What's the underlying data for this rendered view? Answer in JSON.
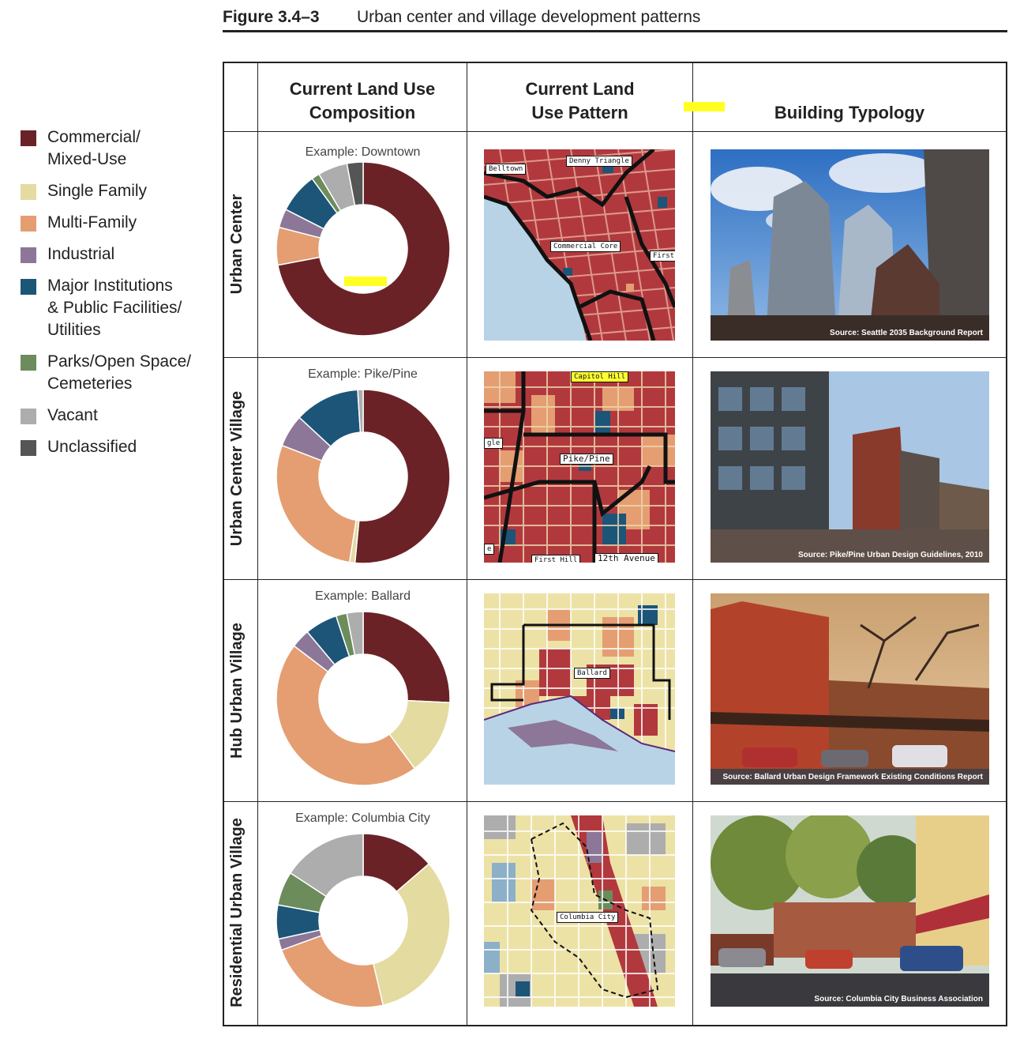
{
  "figure": {
    "number": "Figure 3.4–3",
    "title": "Urban center and village development patterns"
  },
  "legend": [
    {
      "label_lines": [
        "Commercial/",
        "Mixed-Use"
      ],
      "color": "#6b2226"
    },
    {
      "label_lines": [
        "Single Family"
      ],
      "color": "#e3dba0"
    },
    {
      "label_lines": [
        "Multi-Family"
      ],
      "color": "#e49e72"
    },
    {
      "label_lines": [
        "Industrial"
      ],
      "color": "#8c7799"
    },
    {
      "label_lines": [
        "Major Institutions",
        "& Public Facilities/",
        "Utilities"
      ],
      "color": "#1c5578"
    },
    {
      "label_lines": [
        "Parks/Open Space/",
        "Cemeteries"
      ],
      "color": "#6c8c5c"
    },
    {
      "label_lines": [
        "Vacant"
      ],
      "color": "#adadad"
    },
    {
      "label_lines": [
        "Unclassified"
      ],
      "color": "#555555"
    }
  ],
  "columns": {
    "composition_lines": [
      "Current Land Use",
      "Composition"
    ],
    "pattern_lines": [
      "Current Land",
      "Use Pattern"
    ],
    "typology": "Building Typology"
  },
  "rows": [
    {
      "label": "Urban Center",
      "example": "Example: Downtown",
      "map_labels": [
        "Belltown",
        "Denny Triangle",
        "Commercial Core",
        "First H"
      ],
      "photo_source": "Source: Seattle 2035 Background Report"
    },
    {
      "label": "Urban Center Village",
      "example": "Example: Pike/Pine",
      "map_labels": [
        "Capitol Hill",
        "gle",
        "Pike/Pine",
        "e",
        "First Hill",
        "12th Avenue"
      ],
      "photo_source": "Source: Pike/Pine Urban Design Guidelines, 2010"
    },
    {
      "label": "Hub Urban Village",
      "example": "Example: Ballard",
      "map_labels": [
        "Ballard"
      ],
      "photo_source": "Source: Ballard Urban Design Framework Existing Conditions Report"
    },
    {
      "label": "Residential Urban Village",
      "example": "Example: Columbia City",
      "map_labels": [
        "Columbia City"
      ],
      "photo_source": "Source: Columbia City Business Association"
    }
  ],
  "chart_data": [
    {
      "type": "pie",
      "title": "Example: Downtown",
      "categories": [
        "Commercial/Mixed-Use",
        "Single Family",
        "Multi-Family",
        "Industrial",
        "Major Institutions & Public Facilities/Utilities",
        "Parks/Open Space/Cemeteries",
        "Vacant",
        "Unclassified"
      ],
      "values": [
        72,
        0,
        7,
        3.5,
        7.5,
        1.5,
        5.5,
        3
      ]
    },
    {
      "type": "pie",
      "title": "Example: Pike/Pine",
      "categories": [
        "Commercial/Mixed-Use",
        "Single Family",
        "Multi-Family",
        "Industrial",
        "Major Institutions & Public Facilities/Utilities",
        "Parks/Open Space/Cemeteries",
        "Vacant",
        "Unclassified"
      ],
      "values": [
        51,
        1,
        28,
        6,
        12,
        0,
        1,
        0
      ]
    },
    {
      "type": "pie",
      "title": "Example: Ballard",
      "categories": [
        "Commercial/Mixed-Use",
        "Single Family",
        "Multi-Family",
        "Industrial",
        "Major Institutions & Public Facilities/Utilities",
        "Parks/Open Space/Cemeteries",
        "Vacant",
        "Unclassified"
      ],
      "values": [
        25.5,
        14,
        45,
        3.5,
        6,
        2,
        3,
        0
      ]
    },
    {
      "type": "pie",
      "title": "Example: Columbia City",
      "categories": [
        "Commercial/Mixed-Use",
        "Single Family",
        "Multi-Family",
        "Industrial",
        "Major Institutions & Public Facilities/Utilities",
        "Parks/Open Space/Cemeteries",
        "Vacant",
        "Unclassified"
      ],
      "values": [
        13,
        31,
        22,
        2,
        6,
        6,
        15,
        0
      ]
    }
  ]
}
